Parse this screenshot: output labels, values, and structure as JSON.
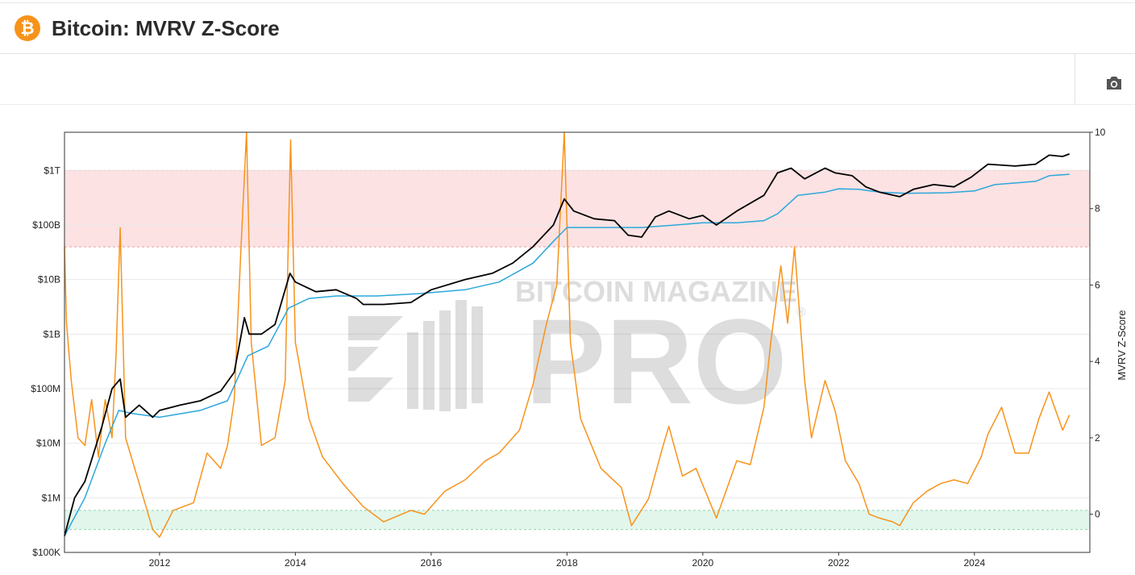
{
  "header": {
    "title": "Bitcoin: MVRV Z-Score",
    "logo_symbol": "₿",
    "logo_color": "#f7931a"
  },
  "toolbar": {
    "camera_icon": "camera-icon"
  },
  "watermark": {
    "line1": "BITCOIN MAGAZINE",
    "line2": "PRO",
    "reg": "®"
  },
  "colors": {
    "market_cap": "#000000",
    "realized_cap": "#2ba7dc",
    "zscore": "#f7931a",
    "red_band": "#fde2e3",
    "green_band": "#e2f6ec"
  },
  "chart_data": {
    "type": "line",
    "x_range": [
      2010.6,
      2025.7
    ],
    "x_ticks": [
      2012,
      2014,
      2016,
      2018,
      2020,
      2022,
      2024
    ],
    "y_left": {
      "scale": "log",
      "range": [
        100000,
        5000000000000
      ],
      "ticks": [
        {
          "value": 1000000000000,
          "label": "$1T"
        },
        {
          "value": 100000000000,
          "label": "$100B"
        },
        {
          "value": 10000000000,
          "label": "$10B"
        },
        {
          "value": 1000000000,
          "label": "$1B"
        },
        {
          "value": 100000000,
          "label": "$100M"
        },
        {
          "value": 10000000,
          "label": "$10M"
        },
        {
          "value": 1000000,
          "label": "$1M"
        },
        {
          "value": 100000,
          "label": "$100K"
        }
      ]
    },
    "y_right": {
      "title": "MVRV Z-Score",
      "range": [
        -1,
        10
      ],
      "ticks": [
        0,
        2,
        4,
        6,
        8,
        10
      ]
    },
    "bands": [
      {
        "name": "red",
        "zscore_range": [
          7,
          9
        ]
      },
      {
        "name": "green",
        "zscore_range": [
          -0.4,
          0.1
        ]
      }
    ],
    "series": [
      {
        "name": "",
        "role": "market_cap",
        "axis": "left",
        "x": [
          2010.6,
          2010.75,
          2010.9,
          2011.0,
          2011.15,
          2011.3,
          2011.42,
          2011.5,
          2011.7,
          2011.9,
          2012.0,
          2012.3,
          2012.6,
          2012.9,
          2013.1,
          2013.25,
          2013.32,
          2013.5,
          2013.7,
          2013.92,
          2014.0,
          2014.3,
          2014.6,
          2014.9,
          2015.0,
          2015.3,
          2015.7,
          2016.0,
          2016.5,
          2016.9,
          2017.2,
          2017.5,
          2017.8,
          2017.96,
          2018.1,
          2018.4,
          2018.7,
          2018.9,
          2019.1,
          2019.3,
          2019.5,
          2019.8,
          2020.0,
          2020.2,
          2020.5,
          2020.9,
          2021.1,
          2021.3,
          2021.5,
          2021.8,
          2021.95,
          2022.2,
          2022.4,
          2022.6,
          2022.9,
          2023.1,
          2023.4,
          2023.7,
          2023.95,
          2024.2,
          2024.6,
          2024.9,
          2025.1,
          2025.3,
          2025.4
        ],
        "values": [
          200000,
          1000000,
          2000000,
          5000000,
          20000000,
          100000000,
          150000000,
          30000000,
          50000000,
          30000000,
          40000000,
          50000000,
          60000000,
          90000000,
          200000000,
          2000000000,
          1000000000,
          1000000000,
          1500000000,
          13000000000,
          9000000000,
          6000000000,
          6500000000,
          4500000000,
          3500000000,
          3500000000,
          3800000000,
          6500000000,
          10000000000,
          13000000000,
          20000000000,
          40000000000,
          100000000000,
          300000000000,
          180000000000,
          130000000000,
          120000000000,
          65000000000,
          60000000000,
          140000000000,
          180000000000,
          130000000000,
          150000000000,
          100000000000,
          180000000000,
          350000000000,
          900000000000,
          1100000000000,
          700000000000,
          1100000000000,
          900000000000,
          800000000000,
          500000000000,
          400000000000,
          330000000000,
          450000000000,
          550000000000,
          500000000000,
          750000000000,
          1300000000000,
          1200000000000,
          1300000000000,
          1900000000000,
          1800000000000,
          2000000000000
        ]
      },
      {
        "name": "",
        "role": "realized_cap",
        "axis": "left",
        "x": [
          2010.6,
          2010.9,
          2011.2,
          2011.4,
          2011.6,
          2012.0,
          2012.6,
          2013.0,
          2013.3,
          2013.6,
          2013.9,
          2014.2,
          2014.6,
          2015.2,
          2015.8,
          2016.5,
          2017.0,
          2017.5,
          2017.8,
          2018.0,
          2018.3,
          2018.8,
          2019.1,
          2019.6,
          2020.0,
          2020.5,
          2020.9,
          2021.1,
          2021.4,
          2021.8,
          2022.0,
          2022.3,
          2022.6,
          2023.0,
          2023.6,
          2024.0,
          2024.3,
          2024.9,
          2025.1,
          2025.4
        ],
        "values": [
          200000,
          1000000,
          10000000,
          40000000,
          35000000,
          30000000,
          40000000,
          60000000,
          400000000,
          600000000,
          3000000000,
          4500000000,
          5000000000,
          5000000000,
          5500000000,
          6500000000,
          9000000000,
          20000000000,
          50000000000,
          90000000000,
          90000000000,
          90000000000,
          90000000000,
          100000000000,
          110000000000,
          110000000000,
          120000000000,
          160000000000,
          350000000000,
          400000000000,
          460000000000,
          450000000000,
          400000000000,
          380000000000,
          390000000000,
          420000000000,
          550000000000,
          630000000000,
          800000000000,
          850000000000
        ]
      },
      {
        "name": "",
        "role": "zscore",
        "axis": "right",
        "x": [
          2010.6,
          2010.63,
          2010.7,
          2010.8,
          2010.9,
          2011.0,
          2011.1,
          2011.2,
          2011.3,
          2011.36,
          2011.42,
          2011.5,
          2011.7,
          2011.9,
          2012.0,
          2012.2,
          2012.5,
          2012.7,
          2012.9,
          2013.0,
          2013.1,
          2013.2,
          2013.28,
          2013.35,
          2013.5,
          2013.7,
          2013.85,
          2013.93,
          2014.0,
          2014.2,
          2014.4,
          2014.7,
          2015.0,
          2015.3,
          2015.7,
          2015.9,
          2016.2,
          2016.5,
          2016.8,
          2017.0,
          2017.3,
          2017.5,
          2017.7,
          2017.85,
          2017.96,
          2018.05,
          2018.2,
          2018.5,
          2018.8,
          2018.95,
          2019.2,
          2019.4,
          2019.5,
          2019.7,
          2019.9,
          2020.2,
          2020.5,
          2020.7,
          2020.9,
          2021.0,
          2021.15,
          2021.25,
          2021.35,
          2021.5,
          2021.6,
          2021.8,
          2021.95,
          2022.1,
          2022.3,
          2022.45,
          2022.6,
          2022.8,
          2022.9,
          2023.1,
          2023.3,
          2023.5,
          2023.7,
          2023.9,
          2024.1,
          2024.2,
          2024.4,
          2024.6,
          2024.8,
          2024.95,
          2025.1,
          2025.3,
          2025.4
        ],
        "values": [
          7,
          5,
          3.5,
          2,
          1.8,
          3,
          1.5,
          3,
          2,
          4.2,
          7.5,
          2,
          0.8,
          -0.4,
          -0.6,
          0.1,
          0.3,
          1.6,
          1.2,
          1.8,
          3,
          7,
          10,
          4.5,
          1.8,
          2,
          3.5,
          9.8,
          4.5,
          2.5,
          1.5,
          0.8,
          0.2,
          -0.2,
          0.1,
          0,
          0.6,
          0.9,
          1.4,
          1.6,
          2.2,
          3.4,
          5,
          6,
          10,
          4.5,
          2.5,
          1.2,
          0.7,
          -0.3,
          0.4,
          1.7,
          2.3,
          1,
          1.2,
          -0.1,
          1.4,
          1.3,
          2.8,
          4.5,
          6.5,
          5,
          7,
          3.5,
          2,
          3.5,
          2.7,
          1.4,
          0.8,
          0,
          -0.1,
          -0.2,
          -0.3,
          0.3,
          0.6,
          0.8,
          0.9,
          0.8,
          1.5,
          2.1,
          2.8,
          1.6,
          1.6,
          2.5,
          3.2,
          2.2,
          2.6
        ]
      }
    ]
  }
}
